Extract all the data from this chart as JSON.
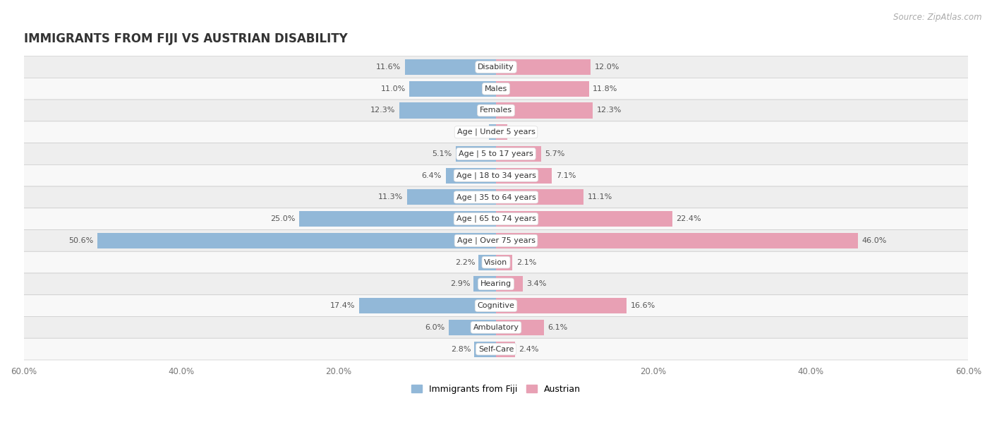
{
  "title": "IMMIGRANTS FROM FIJI VS AUSTRIAN DISABILITY",
  "source": "Source: ZipAtlas.com",
  "categories": [
    "Disability",
    "Males",
    "Females",
    "Age | Under 5 years",
    "Age | 5 to 17 years",
    "Age | 18 to 34 years",
    "Age | 35 to 64 years",
    "Age | 65 to 74 years",
    "Age | Over 75 years",
    "Vision",
    "Hearing",
    "Cognitive",
    "Ambulatory",
    "Self-Care"
  ],
  "fiji_values": [
    11.6,
    11.0,
    12.3,
    0.92,
    5.1,
    6.4,
    11.3,
    25.0,
    50.6,
    2.2,
    2.9,
    17.4,
    6.0,
    2.8
  ],
  "austrian_values": [
    12.0,
    11.8,
    12.3,
    1.4,
    5.7,
    7.1,
    11.1,
    22.4,
    46.0,
    2.1,
    3.4,
    16.6,
    6.1,
    2.4
  ],
  "fiji_color": "#92b8d8",
  "austrian_color": "#e8a0b4",
  "fiji_label": "Immigrants from Fiji",
  "austrian_label": "Austrian",
  "x_max": 60.0,
  "background_color": "#ffffff",
  "row_bg_odd": "#eeeeee",
  "row_bg_even": "#f8f8f8",
  "title_fontsize": 12,
  "source_fontsize": 8.5,
  "label_fontsize": 8,
  "bar_height": 0.72
}
